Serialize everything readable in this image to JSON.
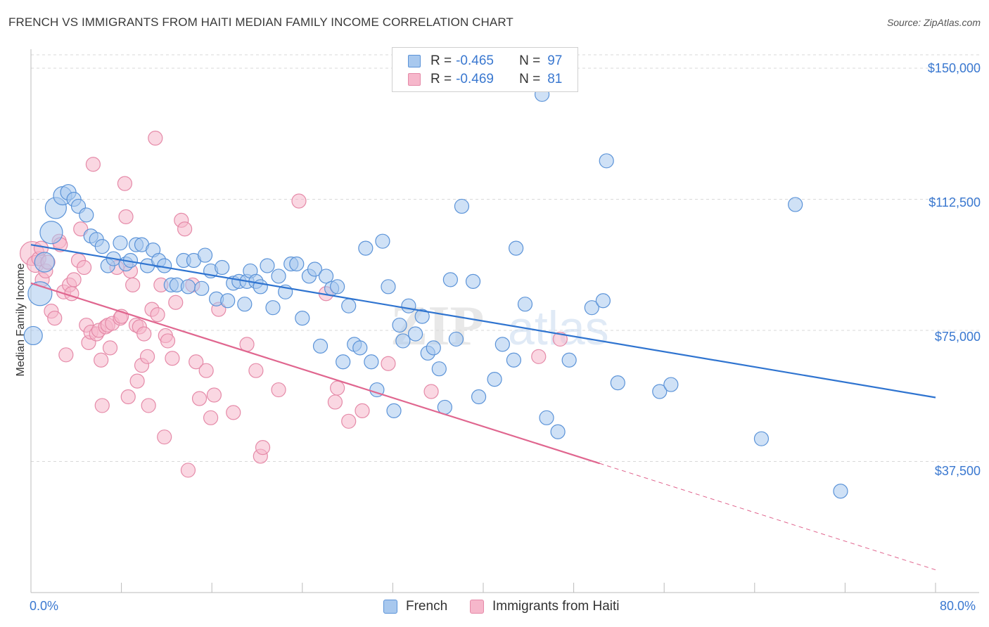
{
  "title": "FRENCH VS IMMIGRANTS FROM HAITI MEDIAN FAMILY INCOME CORRELATION CHART",
  "source": "Source: ZipAtlas.com",
  "watermark_zip": "ZIP",
  "watermark_atlas": "atlas",
  "legend_top": [
    {
      "r_key": "R =",
      "r_value": "-0.465",
      "n_key": "N =",
      "n_value": "97"
    },
    {
      "r_key": "R =",
      "r_value": "-0.469",
      "n_key": "N =",
      "n_value": "81"
    }
  ],
  "legend_bottom": [
    "French",
    "Immigrants from Haiti"
  ],
  "colors": {
    "french_fill": "#a8c8ee",
    "french_stroke": "#5b93d8",
    "french_line": "#2f74d0",
    "haiti_fill": "#f6b7cb",
    "haiti_stroke": "#e58aa8",
    "haiti_line": "#e0668f",
    "tick_label": "#3a78d0",
    "grid": "#d9d9d9"
  },
  "chart_data": {
    "type": "scatter",
    "title": "FRENCH VS IMMIGRANTS FROM HAITI MEDIAN FAMILY INCOME CORRELATION CHART",
    "xlabel": "",
    "ylabel": "Median Family Income",
    "xlim": [
      0,
      80
    ],
    "ylim": [
      0,
      155000
    ],
    "x_tick_labels": [
      "0.0%",
      "80.0%"
    ],
    "y_ticks": [
      37500,
      75000,
      112500,
      150000
    ],
    "y_tick_labels": [
      "$37,500",
      "$75,000",
      "$112,500",
      "$150,000"
    ],
    "grid": true,
    "legend": "top-center",
    "series": [
      {
        "name": "French",
        "r": -0.465,
        "n": 97,
        "trend": {
          "x": [
            0,
            80
          ],
          "y": [
            99500,
            55800
          ],
          "dashed_after": null
        },
        "points": [
          [
            0.2,
            73500,
            13
          ],
          [
            0.8,
            85500,
            17
          ],
          [
            1.2,
            94500,
            14
          ],
          [
            1.8,
            103000,
            16
          ],
          [
            2.2,
            110000,
            15
          ],
          [
            2.8,
            113500,
            13
          ],
          [
            3.3,
            114500,
            11
          ],
          [
            3.8,
            112500,
            10
          ],
          [
            4.2,
            110500,
            10
          ],
          [
            4.9,
            108000,
            10
          ],
          [
            5.3,
            102000,
            10
          ],
          [
            5.8,
            101000,
            10
          ],
          [
            6.3,
            99000,
            10
          ],
          [
            6.8,
            93500,
            10
          ],
          [
            7.3,
            95500,
            10
          ],
          [
            7.9,
            100000,
            10
          ],
          [
            8.4,
            94000,
            10
          ],
          [
            8.8,
            95000,
            10
          ],
          [
            9.3,
            99500,
            10
          ],
          [
            9.8,
            99500,
            10
          ],
          [
            10.3,
            93500,
            10
          ],
          [
            10.8,
            98000,
            10
          ],
          [
            11.3,
            95000,
            10
          ],
          [
            11.8,
            93500,
            10
          ],
          [
            12.4,
            88000,
            10
          ],
          [
            12.9,
            88000,
            10
          ],
          [
            13.5,
            95000,
            10
          ],
          [
            13.9,
            87500,
            10
          ],
          [
            14.4,
            95000,
            10
          ],
          [
            15.1,
            87000,
            10
          ],
          [
            15.4,
            96500,
            10
          ],
          [
            15.9,
            92000,
            10
          ],
          [
            16.4,
            84000,
            10
          ],
          [
            16.9,
            93000,
            10
          ],
          [
            17.4,
            83500,
            10
          ],
          [
            17.9,
            88500,
            10
          ],
          [
            18.4,
            89000,
            10
          ],
          [
            18.9,
            82500,
            10
          ],
          [
            19.1,
            89000,
            10
          ],
          [
            19.4,
            92000,
            10
          ],
          [
            19.9,
            89000,
            10
          ],
          [
            20.3,
            87500,
            10
          ],
          [
            20.9,
            93500,
            10
          ],
          [
            21.4,
            81500,
            10
          ],
          [
            21.9,
            90500,
            10
          ],
          [
            22.5,
            86000,
            10
          ],
          [
            23.0,
            94000,
            10
          ],
          [
            23.5,
            94000,
            10
          ],
          [
            24.0,
            78500,
            10
          ],
          [
            24.6,
            90500,
            10
          ],
          [
            25.1,
            92500,
            10
          ],
          [
            25.6,
            70500,
            10
          ],
          [
            26.1,
            90500,
            10
          ],
          [
            26.6,
            87000,
            10
          ],
          [
            27.1,
            87500,
            10
          ],
          [
            27.6,
            66000,
            10
          ],
          [
            28.1,
            82000,
            10
          ],
          [
            28.6,
            71000,
            10
          ],
          [
            29.1,
            70000,
            10
          ],
          [
            29.6,
            98500,
            10
          ],
          [
            30.1,
            66000,
            10
          ],
          [
            30.6,
            58000,
            10
          ],
          [
            31.1,
            100500,
            10
          ],
          [
            31.6,
            87500,
            10
          ],
          [
            32.1,
            52000,
            10
          ],
          [
            32.6,
            76500,
            10
          ],
          [
            32.9,
            72000,
            10
          ],
          [
            33.4,
            82000,
            10
          ],
          [
            34.0,
            74000,
            10
          ],
          [
            34.6,
            79000,
            10
          ],
          [
            35.1,
            68500,
            10
          ],
          [
            35.6,
            70000,
            10
          ],
          [
            36.1,
            64000,
            10
          ],
          [
            36.6,
            53000,
            10
          ],
          [
            37.1,
            89500,
            10
          ],
          [
            37.6,
            72500,
            10
          ],
          [
            38.1,
            110500,
            10
          ],
          [
            39.1,
            89000,
            10
          ],
          [
            39.6,
            56000,
            10
          ],
          [
            41.0,
            61000,
            10
          ],
          [
            41.7,
            71000,
            10
          ],
          [
            42.7,
            66500,
            10
          ],
          [
            42.9,
            98500,
            10
          ],
          [
            43.7,
            82500,
            10
          ],
          [
            45.6,
            50000,
            10
          ],
          [
            46.6,
            46000,
            10
          ],
          [
            45.2,
            142500,
            10
          ],
          [
            47.6,
            66500,
            10
          ],
          [
            49.6,
            81500,
            10
          ],
          [
            50.6,
            83500,
            10
          ],
          [
            50.9,
            123500,
            10
          ],
          [
            51.9,
            60000,
            10
          ],
          [
            55.6,
            57500,
            10
          ],
          [
            56.6,
            59500,
            10
          ],
          [
            64.6,
            44000,
            10
          ],
          [
            67.6,
            111000,
            10
          ],
          [
            71.6,
            29000,
            10
          ]
        ]
      },
      {
        "name": "Immigrants from Haiti",
        "r": -0.469,
        "n": 81,
        "trend": {
          "x": [
            0,
            80
          ],
          "y": [
            88500,
            6500
          ],
          "dashed_after": 50.3
        },
        "points": [
          [
            0.1,
            97000,
            17
          ],
          [
            0.4,
            94000,
            12
          ],
          [
            0.7,
            95500,
            10
          ],
          [
            0.9,
            98500,
            10
          ],
          [
            1.0,
            89500,
            10
          ],
          [
            1.3,
            92000,
            10
          ],
          [
            1.5,
            94500,
            10
          ],
          [
            1.8,
            80500,
            10
          ],
          [
            2.1,
            78500,
            10
          ],
          [
            2.5,
            100500,
            10
          ],
          [
            2.6,
            99500,
            10
          ],
          [
            2.9,
            86000,
            10
          ],
          [
            3.1,
            68000,
            10
          ],
          [
            3.4,
            88000,
            10
          ],
          [
            3.6,
            85500,
            10
          ],
          [
            3.8,
            89500,
            10
          ],
          [
            4.2,
            95000,
            10
          ],
          [
            4.4,
            104000,
            10
          ],
          [
            4.7,
            93000,
            10
          ],
          [
            4.9,
            76500,
            10
          ],
          [
            5.1,
            71500,
            10
          ],
          [
            5.3,
            74500,
            10
          ],
          [
            5.5,
            122500,
            10
          ],
          [
            5.8,
            74000,
            10
          ],
          [
            6.0,
            75000,
            10
          ],
          [
            6.2,
            66500,
            10
          ],
          [
            6.3,
            53500,
            10
          ],
          [
            6.6,
            76000,
            10
          ],
          [
            6.8,
            76500,
            10
          ],
          [
            7.0,
            70000,
            10
          ],
          [
            7.2,
            77000,
            10
          ],
          [
            7.6,
            93000,
            10
          ],
          [
            7.9,
            78500,
            10
          ],
          [
            8.0,
            79000,
            10
          ],
          [
            8.3,
            117000,
            10
          ],
          [
            8.4,
            107500,
            10
          ],
          [
            8.6,
            56000,
            10
          ],
          [
            8.8,
            92000,
            10
          ],
          [
            9.0,
            88000,
            10
          ],
          [
            9.3,
            76500,
            10
          ],
          [
            9.4,
            60500,
            10
          ],
          [
            9.6,
            76000,
            10
          ],
          [
            9.8,
            65000,
            10
          ],
          [
            10.0,
            74000,
            10
          ],
          [
            10.3,
            67500,
            10
          ],
          [
            10.4,
            53500,
            10
          ],
          [
            10.7,
            81000,
            10
          ],
          [
            11.0,
            130000,
            10
          ],
          [
            11.2,
            79500,
            10
          ],
          [
            11.5,
            88000,
            10
          ],
          [
            11.8,
            44500,
            10
          ],
          [
            11.9,
            73500,
            10
          ],
          [
            12.1,
            72000,
            10
          ],
          [
            12.5,
            67000,
            10
          ],
          [
            12.8,
            83000,
            10
          ],
          [
            13.3,
            106500,
            10
          ],
          [
            13.6,
            104000,
            10
          ],
          [
            13.9,
            35000,
            10
          ],
          [
            14.3,
            88000,
            10
          ],
          [
            14.6,
            66000,
            10
          ],
          [
            14.9,
            55500,
            10
          ],
          [
            15.5,
            63500,
            10
          ],
          [
            15.9,
            50000,
            10
          ],
          [
            16.2,
            56500,
            10
          ],
          [
            16.6,
            81000,
            10
          ],
          [
            17.9,
            51500,
            10
          ],
          [
            19.1,
            71000,
            10
          ],
          [
            19.9,
            63500,
            10
          ],
          [
            20.3,
            39000,
            10
          ],
          [
            20.5,
            41500,
            10
          ],
          [
            21.9,
            58000,
            10
          ],
          [
            23.7,
            112000,
            10
          ],
          [
            26.1,
            85500,
            10
          ],
          [
            26.9,
            54500,
            10
          ],
          [
            27.1,
            58500,
            10
          ],
          [
            28.1,
            49000,
            10
          ],
          [
            29.3,
            52000,
            10
          ],
          [
            31.6,
            65500,
            10
          ],
          [
            35.4,
            57500,
            10
          ],
          [
            46.8,
            72500,
            10
          ],
          [
            44.9,
            67500,
            10
          ]
        ]
      }
    ]
  }
}
